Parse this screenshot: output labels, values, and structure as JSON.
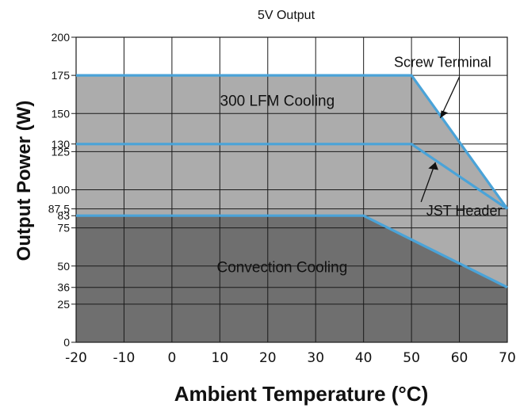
{
  "chart_data": {
    "type": "area",
    "title": "5V Output",
    "xlabel": "Ambient Temperature (°C)",
    "ylabel": "Output Power (W)",
    "xlim": [
      -20,
      70
    ],
    "ylim": [
      0,
      200
    ],
    "x_ticks": [
      -20,
      -10,
      0,
      10,
      20,
      30,
      40,
      50,
      60,
      70
    ],
    "x_tick_labels": [
      "-20",
      "-10",
      "0",
      "10",
      "20",
      "30",
      "40",
      "50",
      "60",
      "70"
    ],
    "y_ticks": [
      0,
      25,
      36,
      50,
      75,
      83,
      87.5,
      100,
      125,
      130,
      150,
      175,
      200
    ],
    "y_tick_labels": [
      "0",
      "25",
      "36",
      "50",
      "75",
      "83",
      "87.5",
      "100",
      "125",
      "130",
      "150",
      "175",
      "200"
    ],
    "grid": true,
    "series": [
      {
        "name": "Screw Terminal",
        "label": "300 LFM Cooling",
        "points": [
          [
            -20,
            175
          ],
          [
            50,
            175
          ],
          [
            70,
            87.5
          ]
        ],
        "color": "#4aa3d8"
      },
      {
        "name": "JST Header",
        "points": [
          [
            -20,
            130
          ],
          [
            50,
            130
          ],
          [
            70,
            87.5
          ]
        ],
        "color": "#4aa3d8"
      },
      {
        "name": "Convection Cooling",
        "points": [
          [
            -20,
            83
          ],
          [
            40,
            83
          ],
          [
            70,
            36
          ]
        ],
        "color": "#4aa3d8"
      }
    ],
    "annotations": [
      {
        "text": "Screw Terminal",
        "points_to": [
          56,
          147
        ]
      },
      {
        "text": "JST Header",
        "points_to": [
          55,
          118
        ]
      }
    ],
    "colors": {
      "upper_fill": "#acacac",
      "lower_fill": "#6f6f6f",
      "line": "#4aa3d8",
      "grid": "#1a1a1a"
    }
  }
}
